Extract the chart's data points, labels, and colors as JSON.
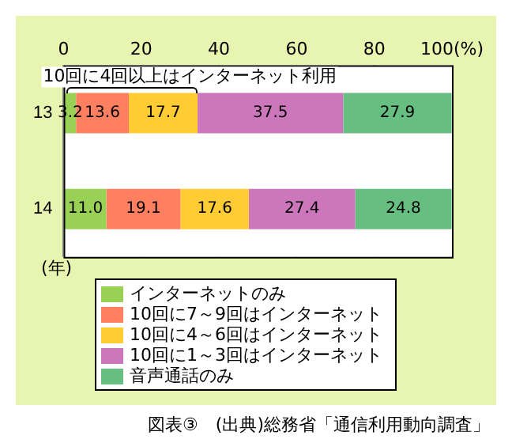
{
  "chart_data": {
    "type": "bar",
    "orientation": "horizontal",
    "stacked": true,
    "categories": [
      "13",
      "14"
    ],
    "ylabel": "(年)",
    "xlim": [
      0,
      100
    ],
    "xticks": [
      0,
      20,
      40,
      60,
      80,
      {
        "value": 100,
        "label": "100(%)"
      }
    ],
    "grid": "x",
    "legend": "bottom",
    "series": [
      {
        "name": "インターネットのみ",
        "color": "#99d155",
        "values": [
          3.2,
          11.0
        ],
        "value_labels": [
          "3.2",
          "11.0"
        ]
      },
      {
        "name": "10回に7～9回はインターネット",
        "color": "#ff8060",
        "values": [
          13.6,
          19.1
        ],
        "value_labels": [
          "13.6",
          "19.1"
        ]
      },
      {
        "name": "10回に4～6回はインターネット",
        "color": "#ffcc33",
        "values": [
          17.7,
          17.6
        ],
        "value_labels": [
          "17.7",
          "17.6"
        ]
      },
      {
        "name": "10回に1～3回はインターネット",
        "color": "#cc77bb",
        "values": [
          37.5,
          27.4
        ],
        "value_labels": [
          "37.5",
          "27.4"
        ]
      },
      {
        "name": "音声通話のみ",
        "color": "#66bf80",
        "values": [
          27.9,
          24.8
        ],
        "value_labels": [
          "27.9",
          "24.8"
        ]
      }
    ],
    "annotations": [
      "10回に4回以上はインターネット利用",
      "図表③　(出典)総務省「通信利用動向調査」"
    ]
  }
}
